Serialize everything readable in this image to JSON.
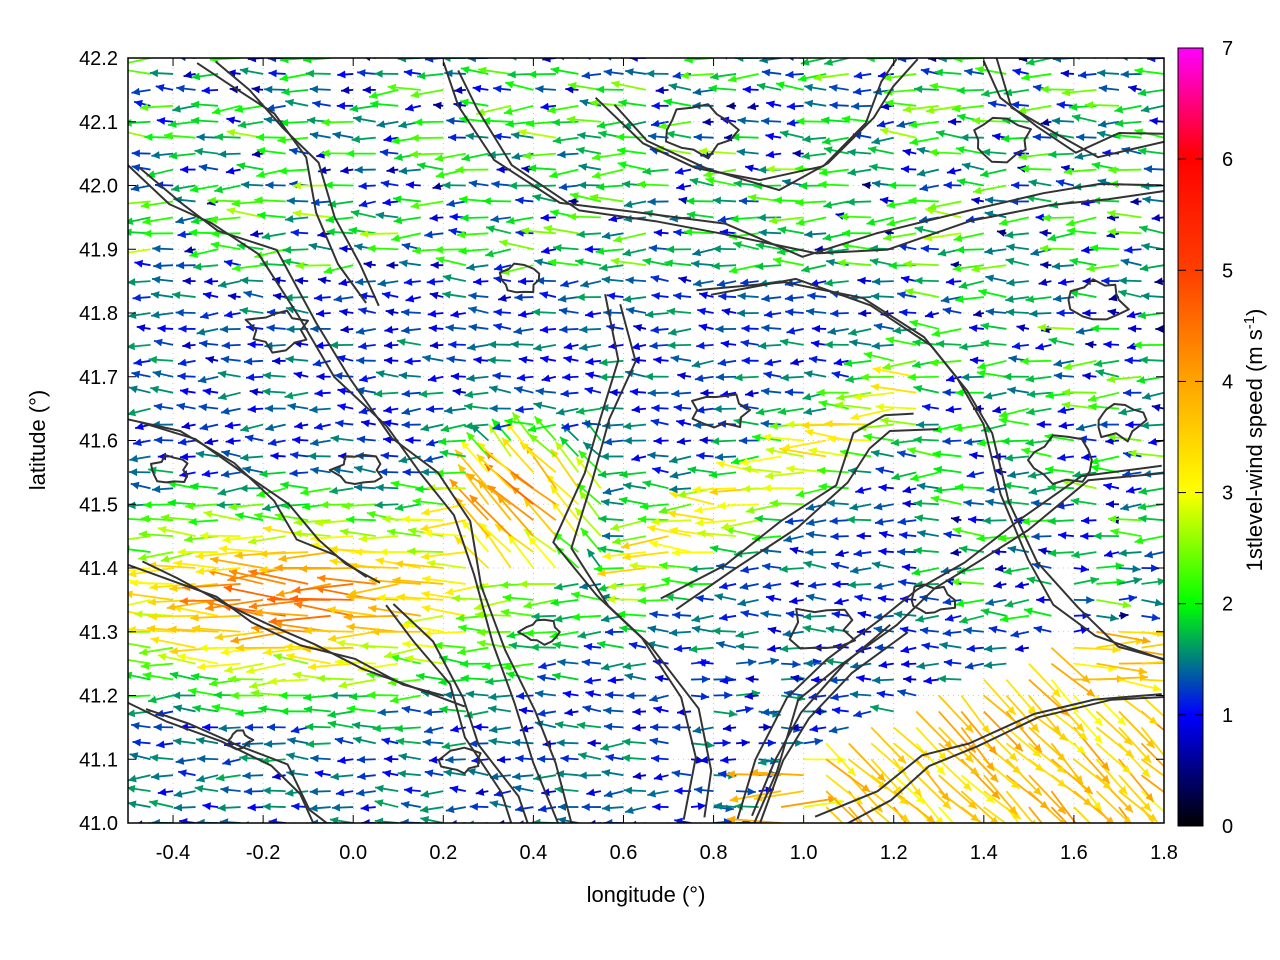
{
  "chart_data": {
    "type": "vector-field",
    "xlabel": "longitude (°)",
    "ylabel": "latitude (°)",
    "xlim": [
      -0.5,
      1.8
    ],
    "ylim": [
      41.0,
      42.2
    ],
    "xticks": [
      -0.4,
      -0.2,
      0.0,
      0.2,
      0.4,
      0.6,
      0.8,
      1.0,
      1.2,
      1.4,
      1.6,
      1.8
    ],
    "xtick_labels": [
      "-0.4",
      "-0.2",
      "0.0",
      "0.2",
      "0.4",
      "0.6",
      "0.8",
      "1.0",
      "1.2",
      "1.4",
      "1.6",
      "1.8"
    ],
    "yticks": [
      41.0,
      41.1,
      41.2,
      41.3,
      41.4,
      41.5,
      41.6,
      41.7,
      41.8,
      41.9,
      42.0,
      42.1,
      42.2
    ],
    "ytick_labels": [
      "41.0",
      "41.1",
      "41.2",
      "41.3",
      "41.4",
      "41.5",
      "41.6",
      "41.7",
      "41.8",
      "41.9",
      "42.0",
      "42.1",
      "42.2"
    ],
    "grid": true,
    "colorbar": {
      "label_parts": [
        "1stlevel-wind speed (m s",
        "-1",
        ")"
      ],
      "range": [
        0,
        7
      ],
      "ticks": [
        0,
        1,
        2,
        3,
        4,
        5,
        6,
        7
      ],
      "tick_labels": [
        "0",
        "1",
        "2",
        "3",
        "4",
        "5",
        "6",
        "7"
      ],
      "colors": [
        "#000000",
        "#0000ff",
        "#00ff00",
        "#ffff00",
        "#ff8c00",
        "#ff0000",
        "#ff00ff"
      ]
    },
    "contour_color": "#333333",
    "grid_spacing_deg": {
      "lon": 0.025,
      "lat": 0.025
    }
  }
}
